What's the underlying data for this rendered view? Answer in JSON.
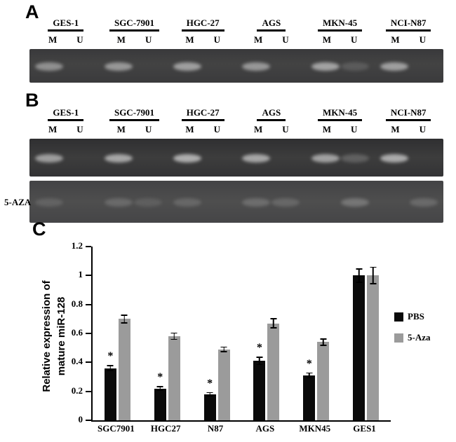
{
  "figure": {
    "panel_a": {
      "label": "A",
      "cell_lines": [
        "GES-1",
        "SGC-7901",
        "HGC-27",
        "AGS",
        "MKN-45",
        "NCI-N87"
      ],
      "lanes": [
        "M",
        "U"
      ],
      "bands": [
        {
          "cell_line": "GES-1",
          "lane": "M",
          "intensity": 0.5
        },
        {
          "cell_line": "SGC-7901",
          "lane": "M",
          "intensity": 0.55
        },
        {
          "cell_line": "HGC-27",
          "lane": "M",
          "intensity": 0.6
        },
        {
          "cell_line": "AGS",
          "lane": "M",
          "intensity": 0.55
        },
        {
          "cell_line": "MKN-45",
          "lane": "M",
          "intensity": 0.62
        },
        {
          "cell_line": "MKN-45",
          "lane": "U",
          "intensity": 0.16
        },
        {
          "cell_line": "NCI-N87",
          "lane": "M",
          "intensity": 0.6
        }
      ]
    },
    "panel_b": {
      "label": "B",
      "cell_lines": [
        "GES-1",
        "SGC-7901",
        "HGC-27",
        "AGS",
        "MKN-45",
        "NCI-N87"
      ],
      "lanes": [
        "M",
        "U"
      ],
      "treatment_label": "5-AZA",
      "gel1_bands": [
        {
          "cell_line": "GES-1",
          "lane": "M",
          "intensity": 0.6
        },
        {
          "cell_line": "SGC-7901",
          "lane": "M",
          "intensity": 0.65
        },
        {
          "cell_line": "HGC-27",
          "lane": "M",
          "intensity": 0.7
        },
        {
          "cell_line": "AGS",
          "lane": "M",
          "intensity": 0.65
        },
        {
          "cell_line": "MKN-45",
          "lane": "M",
          "intensity": 0.62
        },
        {
          "cell_line": "MKN-45",
          "lane": "U",
          "intensity": 0.22
        },
        {
          "cell_line": "NCI-N87",
          "lane": "M",
          "intensity": 0.68
        }
      ],
      "gel2_bands": [
        {
          "cell_line": "GES-1",
          "lane": "M",
          "intensity": 0.15
        },
        {
          "cell_line": "SGC-7901",
          "lane": "M",
          "intensity": 0.2
        },
        {
          "cell_line": "SGC-7901",
          "lane": "U",
          "intensity": 0.12
        },
        {
          "cell_line": "HGC-27",
          "lane": "M",
          "intensity": 0.18
        },
        {
          "cell_line": "AGS",
          "lane": "M",
          "intensity": 0.22
        },
        {
          "cell_line": "AGS",
          "lane": "U",
          "intensity": 0.18
        },
        {
          "cell_line": "MKN-45",
          "lane": "U",
          "intensity": 0.28
        },
        {
          "cell_line": "NCI-N87",
          "lane": "U",
          "intensity": 0.2
        }
      ]
    },
    "panel_c": {
      "label": "C"
    }
  },
  "chart_data": {
    "type": "bar",
    "title": "",
    "xlabel": "",
    "ylabel": "Relative expression of mature miR-128",
    "ylabel_lines": [
      "Relative expression of",
      "mature miR-128"
    ],
    "categories": [
      "SGC7901",
      "HGC27",
      "N87",
      "AGS",
      "MKN45",
      "GES1"
    ],
    "series": [
      {
        "name": "PBS",
        "color": "#0a0a0a",
        "values": [
          0.36,
          0.22,
          0.18,
          0.41,
          0.31,
          1.0
        ],
        "errors": [
          0.02,
          0.015,
          0.015,
          0.03,
          0.02,
          0.05
        ],
        "significant": [
          true,
          true,
          true,
          true,
          true,
          false
        ]
      },
      {
        "name": "5-Aza",
        "color": "#9b9b9b",
        "values": [
          0.7,
          0.58,
          0.49,
          0.67,
          0.54,
          1.0
        ],
        "errors": [
          0.03,
          0.025,
          0.02,
          0.035,
          0.025,
          0.06
        ]
      }
    ],
    "significance_marker": "*",
    "ylim": [
      0,
      1.2
    ],
    "ytick_labels": [
      "0",
      "0.2",
      "0.4",
      "0.6",
      "0.8",
      "1",
      "1.2"
    ],
    "grid": false,
    "legend_position": "right"
  }
}
